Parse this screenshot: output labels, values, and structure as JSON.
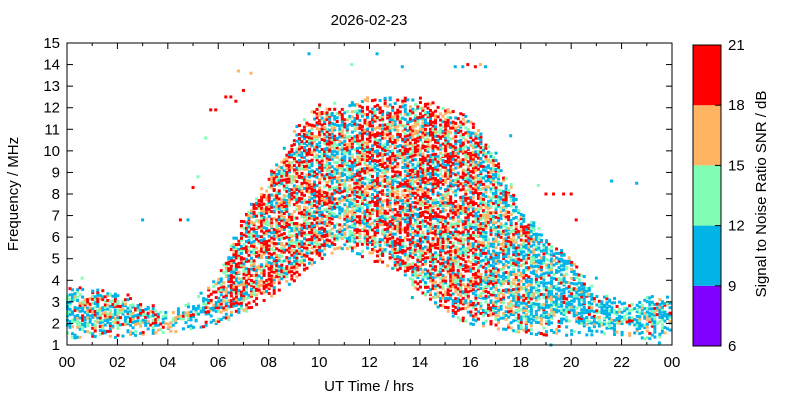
{
  "chart_data": {
    "type": "scatter",
    "title": "2026-02-23",
    "xlabel": "UT Time / hrs",
    "ylabel": "Frequency / MHz",
    "xlim": [
      0,
      24
    ],
    "ylim": [
      1,
      15
    ],
    "x_ticks": [
      "00",
      "02",
      "04",
      "06",
      "08",
      "10",
      "12",
      "14",
      "16",
      "18",
      "20",
      "22",
      "00"
    ],
    "y_ticks": [
      "1",
      "2",
      "3",
      "4",
      "5",
      "6",
      "7",
      "8",
      "9",
      "10",
      "11",
      "12",
      "13",
      "14",
      "15"
    ],
    "colorbar": {
      "label": "Signal to Noise Ratio SNR / dB",
      "ticks": [
        "6",
        "9",
        "12",
        "15",
        "18",
        "21"
      ],
      "bins": [
        {
          "range": [
            6,
            9
          ],
          "color": "#8000ff"
        },
        {
          "range": [
            9,
            12
          ],
          "color": "#00b4e8"
        },
        {
          "range": [
            12,
            15
          ],
          "color": "#80ffb4"
        },
        {
          "range": [
            15,
            18
          ],
          "color": "#ffb464"
        },
        {
          "range": [
            18,
            21
          ],
          "color": "#ff0000"
        }
      ]
    },
    "grid": false,
    "columns": [
      {
        "t": 0.0,
        "fmin": 1.3,
        "fmax": 3.8,
        "dom": "blue"
      },
      {
        "t": 1.0,
        "fmin": 1.4,
        "fmax": 3.6,
        "dom": "mixed"
      },
      {
        "t": 2.0,
        "fmin": 1.4,
        "fmax": 3.5,
        "dom": "mixed"
      },
      {
        "t": 3.0,
        "fmin": 1.5,
        "fmax": 3.1,
        "dom": "mixed"
      },
      {
        "t": 4.0,
        "fmin": 1.6,
        "fmax": 2.6,
        "dom": "mixed"
      },
      {
        "t": 5.0,
        "fmin": 1.8,
        "fmax": 3.0,
        "dom": "blue"
      },
      {
        "t": 6.0,
        "fmin": 2.0,
        "fmax": 4.2,
        "dom": "mixed"
      },
      {
        "t": 7.0,
        "fmin": 2.5,
        "fmax": 7.0,
        "dom": "red"
      },
      {
        "t": 8.0,
        "fmin": 3.2,
        "fmax": 8.8,
        "dom": "red"
      },
      {
        "t": 9.0,
        "fmin": 4.0,
        "fmax": 11.0,
        "dom": "red"
      },
      {
        "t": 10.0,
        "fmin": 5.0,
        "fmax": 12.2,
        "dom": "red"
      },
      {
        "t": 11.0,
        "fmin": 5.5,
        "fmax": 12.2,
        "dom": "mixed"
      },
      {
        "t": 12.0,
        "fmin": 5.0,
        "fmax": 12.5,
        "dom": "red"
      },
      {
        "t": 13.0,
        "fmin": 4.5,
        "fmax": 12.5,
        "dom": "red"
      },
      {
        "t": 14.0,
        "fmin": 3.5,
        "fmax": 12.5,
        "dom": "red"
      },
      {
        "t": 15.0,
        "fmin": 2.5,
        "fmax": 12.0,
        "dom": "red"
      },
      {
        "t": 16.0,
        "fmin": 2.0,
        "fmax": 11.5,
        "dom": "red"
      },
      {
        "t": 17.0,
        "fmin": 1.8,
        "fmax": 10.0,
        "dom": "mixed"
      },
      {
        "t": 18.0,
        "fmin": 1.6,
        "fmax": 7.5,
        "dom": "mixed"
      },
      {
        "t": 19.0,
        "fmin": 1.5,
        "fmax": 6.0,
        "dom": "blue"
      },
      {
        "t": 20.0,
        "fmin": 1.5,
        "fmax": 5.0,
        "dom": "blue"
      },
      {
        "t": 21.0,
        "fmin": 1.5,
        "fmax": 3.5,
        "dom": "blue"
      },
      {
        "t": 22.0,
        "fmin": 1.5,
        "fmax": 3.0,
        "dom": "blue"
      },
      {
        "t": 23.0,
        "fmin": 1.3,
        "fmax": 3.3,
        "dom": "blue"
      },
      {
        "t": 24.0,
        "fmin": 1.5,
        "fmax": 3.4,
        "dom": "blue"
      }
    ],
    "isolated_points": [
      {
        "t": 5.7,
        "f": 11.9,
        "snr": 19
      },
      {
        "t": 5.9,
        "f": 11.9,
        "snr": 19
      },
      {
        "t": 6.3,
        "f": 12.5,
        "snr": 19
      },
      {
        "t": 6.5,
        "f": 12.5,
        "snr": 19
      },
      {
        "t": 6.7,
        "f": 12.3,
        "snr": 19
      },
      {
        "t": 6.8,
        "f": 13.7,
        "snr": 16
      },
      {
        "t": 7.3,
        "f": 13.6,
        "snr": 16
      },
      {
        "t": 5.5,
        "f": 10.6,
        "snr": 13
      },
      {
        "t": 7.0,
        "f": 12.8,
        "snr": 19
      },
      {
        "t": 4.5,
        "f": 6.8,
        "snr": 19
      },
      {
        "t": 4.8,
        "f": 6.8,
        "snr": 10
      },
      {
        "t": 3.0,
        "f": 6.8,
        "snr": 10
      },
      {
        "t": 5.0,
        "f": 8.3,
        "snr": 19
      },
      {
        "t": 5.2,
        "f": 8.8,
        "snr": 13
      },
      {
        "t": 9.6,
        "f": 14.5,
        "snr": 10
      },
      {
        "t": 12.3,
        "f": 14.5,
        "snr": 10
      },
      {
        "t": 13.3,
        "f": 13.9,
        "snr": 10
      },
      {
        "t": 11.3,
        "f": 14.0,
        "snr": 13
      },
      {
        "t": 15.4,
        "f": 13.9,
        "snr": 10
      },
      {
        "t": 15.7,
        "f": 13.9,
        "snr": 10
      },
      {
        "t": 15.9,
        "f": 14.0,
        "snr": 19
      },
      {
        "t": 16.2,
        "f": 13.9,
        "snr": 19
      },
      {
        "t": 16.4,
        "f": 14.0,
        "snr": 16
      },
      {
        "t": 16.6,
        "f": 13.9,
        "snr": 10
      },
      {
        "t": 19.0,
        "f": 8.0,
        "snr": 19
      },
      {
        "t": 19.3,
        "f": 8.0,
        "snr": 19
      },
      {
        "t": 19.7,
        "f": 8.0,
        "snr": 19
      },
      {
        "t": 20.0,
        "f": 8.0,
        "snr": 19
      },
      {
        "t": 18.7,
        "f": 8.4,
        "snr": 13
      },
      {
        "t": 20.2,
        "f": 6.8,
        "snr": 19
      },
      {
        "t": 21.6,
        "f": 8.6,
        "snr": 10
      },
      {
        "t": 22.6,
        "f": 8.5,
        "snr": 10
      },
      {
        "t": 17.6,
        "f": 10.7,
        "snr": 10
      },
      {
        "t": 13.7,
        "f": 3.2,
        "snr": 10
      },
      {
        "t": 21.0,
        "f": 4.1,
        "snr": 10
      },
      {
        "t": 19.2,
        "f": 1.0,
        "snr": 10
      },
      {
        "t": 23.5,
        "f": 1.1,
        "snr": 10
      },
      {
        "t": 0.6,
        "f": 4.1,
        "snr": 13
      }
    ]
  }
}
